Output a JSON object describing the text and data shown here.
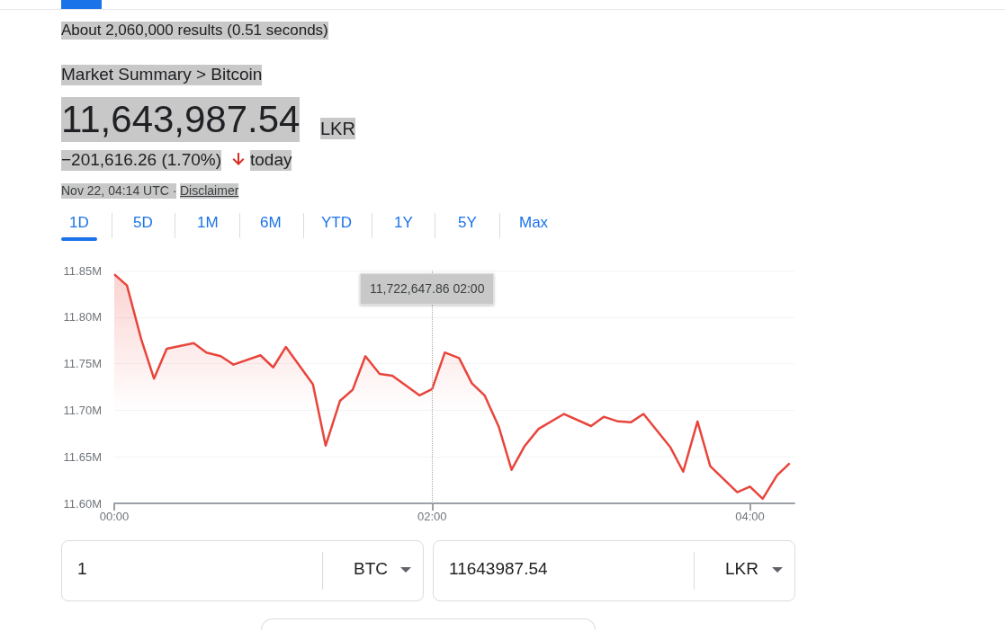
{
  "chart_data": {
    "type": "area",
    "color": "#e8453c",
    "marker": "none",
    "grid": "y",
    "x": [
      0,
      0.08,
      0.17,
      0.25,
      0.33,
      0.5,
      0.58,
      0.67,
      0.75,
      0.92,
      1,
      1.08,
      1.25,
      1.33,
      1.42,
      1.5,
      1.58,
      1.67,
      1.75,
      1.92,
      2,
      2.08,
      2.17,
      2.25,
      2.33,
      2.42,
      2.5,
      2.58,
      2.67,
      2.83,
      3,
      3.08,
      3.17,
      3.25,
      3.33,
      3.5,
      3.58,
      3.67,
      3.75,
      3.92,
      4,
      4.08,
      4.17,
      4.25
    ],
    "values": [
      11846000,
      11834000,
      11776000,
      11734000,
      11766000,
      11772000,
      11762000,
      11758000,
      11749000,
      11759000,
      11746000,
      11768000,
      11728000,
      11662000,
      11710000,
      11722000,
      11758000,
      11739000,
      11737000,
      11716000,
      11722647.86,
      11762000,
      11756000,
      11729000,
      11716000,
      11682000,
      11636000,
      11661000,
      11680000,
      11696000,
      11683000,
      11693000,
      11688000,
      11687000,
      11696000,
      11660000,
      11634000,
      11688000,
      11640000,
      11612000,
      11618000,
      11605000,
      11630000,
      11643000
    ],
    "xlim": [
      0,
      4.28
    ],
    "xticks": [
      {
        "value": 0,
        "label": "00:00"
      },
      {
        "value": 2,
        "label": "02:00"
      },
      {
        "value": 4,
        "label": "04:00"
      }
    ],
    "ylim": [
      11600000,
      11850000
    ],
    "yticks": [
      {
        "value": 11600000,
        "label": "11.60M"
      },
      {
        "value": 11650000,
        "label": "11.65M"
      },
      {
        "value": 11700000,
        "label": "11.70M"
      },
      {
        "value": 11750000,
        "label": "11.75M"
      },
      {
        "value": 11800000,
        "label": "11.80M"
      },
      {
        "value": 11850000,
        "label": "11.85M"
      }
    ],
    "ref_lines": [
      {
        "axis": "x",
        "value": 2,
        "line_style": "dotted",
        "color": "#aaaaaa"
      }
    ],
    "annotations": [
      "About 2,060,000 results (0.51 seconds)",
      "Market Summary > Bitcoin",
      "11,643,987.54",
      "LKR",
      "−201,616.26 (1.70%)",
      "today",
      "Nov 22, 04:14 UTC ·",
      "Disclaimer",
      "1D",
      "5D",
      "1M",
      "6M",
      "YTD",
      "1Y",
      "5Y",
      "Max",
      "1",
      "BTC",
      "11643987.54",
      "LKR",
      "11,722,647.86  02:00"
    ]
  }
}
